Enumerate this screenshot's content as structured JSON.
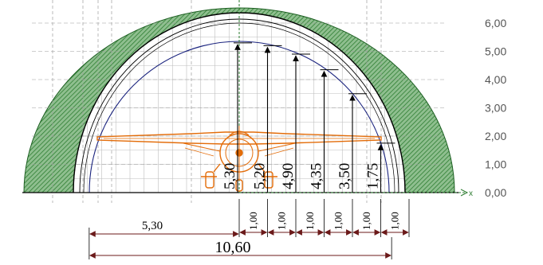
{
  "scale": {
    "labels": [
      "6,00",
      "5,00",
      "4,00",
      "3,00",
      "2,00",
      "1,00",
      "0,00"
    ],
    "values": [
      6,
      5,
      4,
      3,
      2,
      1,
      0
    ]
  },
  "axis": {
    "x_label": "x"
  },
  "heights": {
    "labels": [
      "5,30",
      "5,20",
      "4,90",
      "4,35",
      "3,50",
      "1,75"
    ],
    "offsets": [
      0,
      1,
      2,
      3,
      4,
      5
    ],
    "values": [
      5.3,
      5.2,
      4.9,
      4.35,
      3.5,
      1.75
    ]
  },
  "steps": {
    "labels": [
      "1,00",
      "1,00",
      "1,00",
      "1,00",
      "1,00",
      "1,00"
    ]
  },
  "half_width": {
    "label": "5,30",
    "value": 5.3
  },
  "full_width": {
    "label": "10,60",
    "value": 10.6
  },
  "colors": {
    "hatch": "#2e7d32",
    "hatch_bg": "#8fbf8f",
    "grid": "#bdbdbd",
    "dimension": "#6b1a1a",
    "profile": "#1a237e",
    "axis": "#2e7d32",
    "aircraft": "#e36c09",
    "scale_text": "#555555"
  },
  "aircraft": {
    "icon": "light-aircraft-front-view-icon"
  }
}
